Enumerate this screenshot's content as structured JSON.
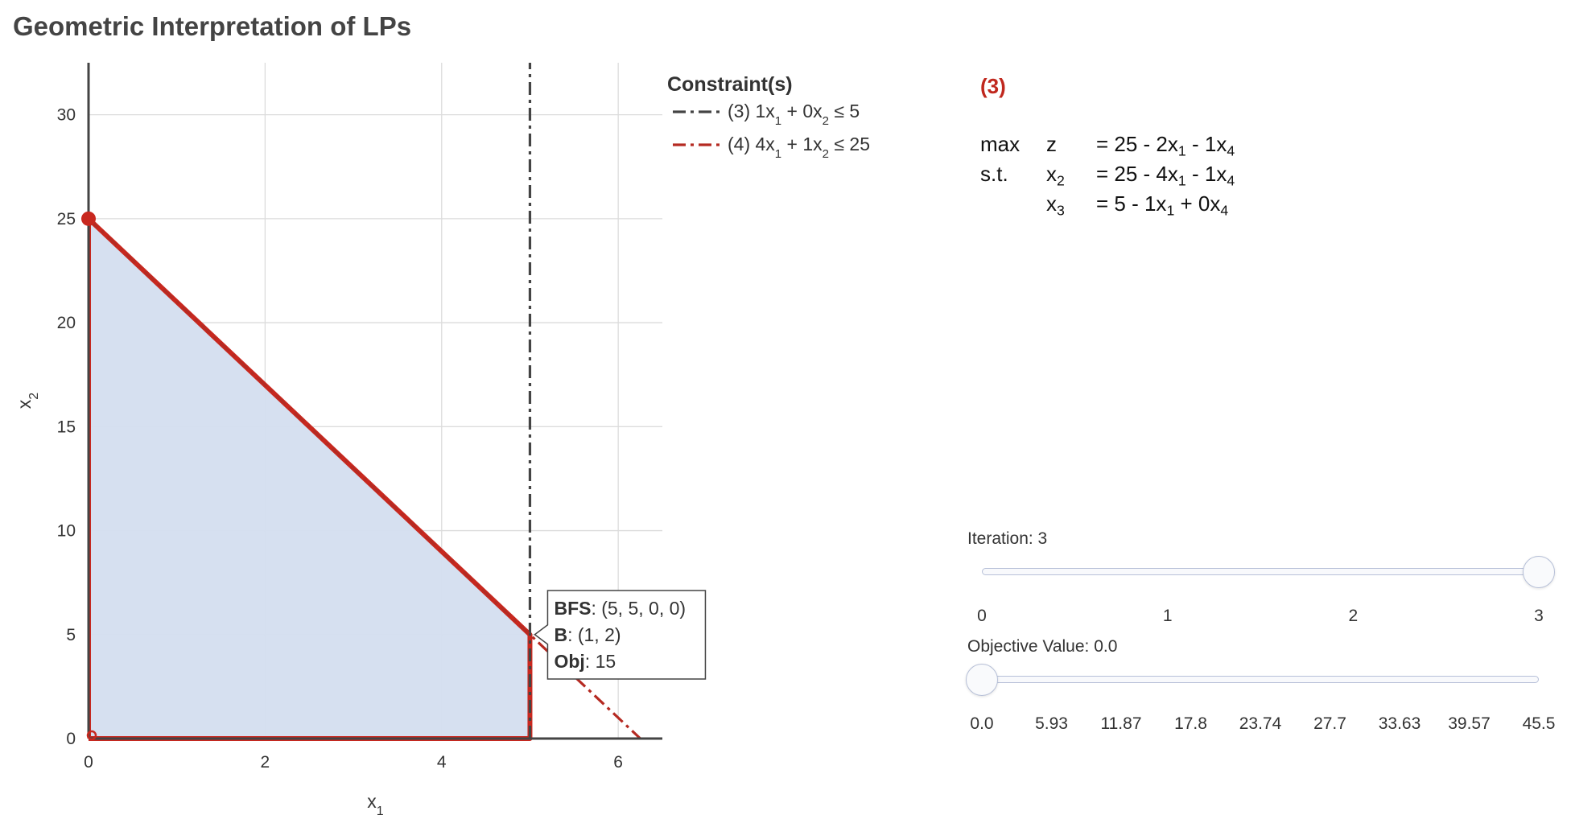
{
  "title": "Geometric Interpretation of LPs",
  "chart_data": {
    "type": "line",
    "xlabel": "x1",
    "ylabel": "x2",
    "xlim": [
      0,
      6.5
    ],
    "ylim": [
      0,
      32.5
    ],
    "x_ticks": [
      0,
      2,
      4,
      6
    ],
    "y_ticks": [
      0,
      5,
      10,
      15,
      20,
      25,
      30
    ],
    "grid": true,
    "legend_title": "Constraint(s)",
    "legend_position": "top-right, outside plot",
    "constraints": [
      {
        "label": "(3) 1x1 + 0x2 ≤ 5",
        "a": [
          1,
          0
        ],
        "b": 5,
        "color": "#444444",
        "dash": "dashdot",
        "points": [
          [
            5,
            0
          ],
          [
            5,
            32.5
          ]
        ]
      },
      {
        "label": "(4) 4x1 + 1x2 ≤ 25",
        "a": [
          4,
          1
        ],
        "b": 25,
        "color": "#b52a22",
        "dash": "dashdot",
        "points": [
          [
            0,
            25
          ],
          [
            6.25,
            0
          ]
        ]
      }
    ],
    "feasible_region": {
      "vertices": [
        [
          0,
          0
        ],
        [
          0,
          25
        ],
        [
          5,
          5
        ],
        [
          5,
          0
        ]
      ],
      "fill": "#d4deef",
      "boundary_color": "#c8281f"
    },
    "markers": [
      {
        "x": 0,
        "y": 25,
        "style": "filled"
      },
      {
        "x": 0,
        "y": 0,
        "style": "open"
      }
    ],
    "hover": {
      "x": 5,
      "y": 5,
      "bfs_label": "BFS",
      "bfs_value": ": (5, 5, 0, 0)",
      "b_label": "B",
      "b_value": ": (1, 2)",
      "obj_label": "Obj",
      "obj_value": ": 15"
    }
  },
  "legend_entries": [
    {
      "prefix": "(3) 1x",
      "parts": [
        "1",
        " + 0x",
        "2",
        " ≤ 5"
      ]
    },
    {
      "prefix": "(4) 4x",
      "parts": [
        "1",
        " + 1x",
        "2",
        " ≤ 25"
      ]
    }
  ],
  "tableau": {
    "iteration_label": "(3)",
    "rows": [
      {
        "c1": "max",
        "c2": "z",
        "c3": "= 25 - 2x<sub>1</sub> - 1x<sub>4</sub>"
      },
      {
        "c1": "s.t.",
        "c2": "x<sub>2</sub>",
        "c3": "= 25 - 4x<sub>1</sub> - 1x<sub>4</sub>"
      },
      {
        "c1": "",
        "c2": "x<sub>3</sub>",
        "c3": "= 5 - 1x<sub>1</sub> + 0x<sub>4</sub>"
      }
    ]
  },
  "iteration_slider": {
    "label": "Iteration: 3",
    "ticks": [
      "0",
      "1",
      "2",
      "3"
    ],
    "value": 3,
    "max": 3
  },
  "objective_slider": {
    "label": "Objective Value: 0.0",
    "ticks": [
      "0.0",
      "5.93",
      "11.87",
      "17.8",
      "23.74",
      "27.7",
      "33.63",
      "39.57",
      "45.5"
    ],
    "value": 0.0,
    "max": 45.5
  }
}
